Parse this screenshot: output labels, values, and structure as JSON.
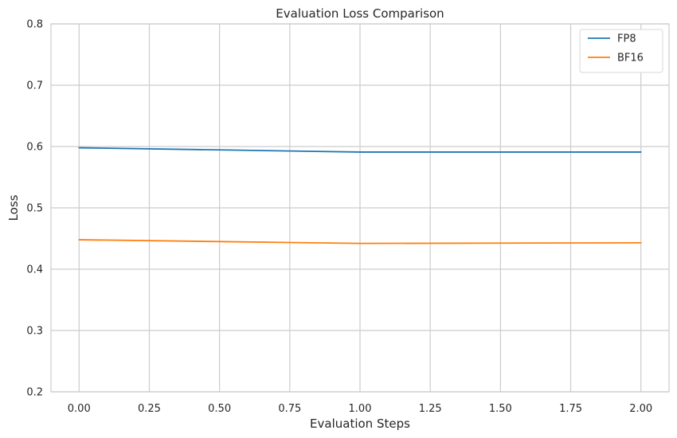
{
  "chart_data": {
    "type": "line",
    "title": "Evaluation Loss Comparison",
    "xlabel": "Evaluation Steps",
    "ylabel": "Loss",
    "xlim": [
      -0.1,
      2.1
    ],
    "ylim": [
      0.2,
      0.8
    ],
    "xticks": [
      0.0,
      0.25,
      0.5,
      0.75,
      1.0,
      1.25,
      1.5,
      1.75,
      2.0
    ],
    "xtick_labels": [
      "0.00",
      "0.25",
      "0.50",
      "0.75",
      "1.00",
      "1.25",
      "1.50",
      "1.75",
      "2.00"
    ],
    "yticks": [
      0.2,
      0.3,
      0.4,
      0.5,
      0.6,
      0.7,
      0.8
    ],
    "ytick_labels": [
      "0.2",
      "0.3",
      "0.4",
      "0.5",
      "0.6",
      "0.7",
      "0.8"
    ],
    "grid": true,
    "legend_position": "top-right",
    "x": [
      0,
      1,
      2
    ],
    "series": [
      {
        "name": "FP8",
        "color": "#1f77b4",
        "values": [
          0.598,
          0.591,
          0.591
        ]
      },
      {
        "name": "BF16",
        "color": "#ff7f0e",
        "values": [
          0.448,
          0.442,
          0.443
        ]
      }
    ]
  }
}
